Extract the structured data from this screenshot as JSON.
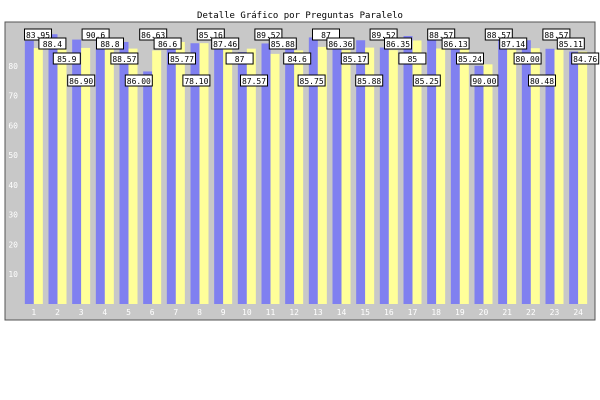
{
  "chart_data": {
    "type": "bar",
    "title": "Detalle Gráfico por Preguntas Paralelo",
    "categories": [
      "1",
      "2",
      "3",
      "4",
      "5",
      "6",
      "7",
      "8",
      "9",
      "10",
      "11",
      "12",
      "13",
      "14",
      "15",
      "16",
      "17",
      "18",
      "19",
      "20",
      "21",
      "22",
      "23",
      "24"
    ],
    "series": [
      {
        "values": [
          88.4,
          90.6,
          88.8,
          88.6,
          88.0,
          78.1,
          87.46,
          87.57,
          89.52,
          84.6,
          87.5,
          86.36,
          89.52,
          85.9,
          88.57,
          86.13,
          90.0,
          88.57,
          87.14,
          80.0,
          88.57,
          88.57,
          85.71,
          84.76
        ],
        "color": "#8080f0"
      },
      {
        "values": [
          85.95,
          86.9,
          86.0,
          86.63,
          85.77,
          85.16,
          88.0,
          87.6,
          85.88,
          85.75,
          84.0,
          85.17,
          86.35,
          85.25,
          86.1,
          85.24,
          88.5,
          85.8,
          85.8,
          80.48,
          85.54,
          85.9,
          85.4,
          84.76
        ],
        "color": "#ffff99"
      }
    ],
    "data_labels": [
      "83.95",
      "88.4",
      "85.9",
      "86.90",
      "90.6",
      "88.8",
      "88.57",
      "86.00",
      "86.63",
      "86.6",
      "85.77",
      "78.10",
      "85.16",
      "87.46",
      "87",
      "87.57",
      "89.52",
      "85.88",
      "84.6",
      "85.75",
      "87",
      "86.36",
      "85.17",
      "85.88",
      "89.52",
      "86.35",
      "85",
      "85.25",
      "88.57",
      "86.13",
      "85.24",
      "90.00",
      "88.57",
      "87.14",
      "80.00",
      "80.48",
      "88.57",
      "85.11",
      "84.76"
    ],
    "ylim": [
      0,
      90
    ],
    "yticks": [
      10,
      20,
      30,
      40,
      50,
      60,
      70,
      80
    ],
    "grid": false,
    "legend": "none",
    "plot_background": "#c8c8c8"
  }
}
